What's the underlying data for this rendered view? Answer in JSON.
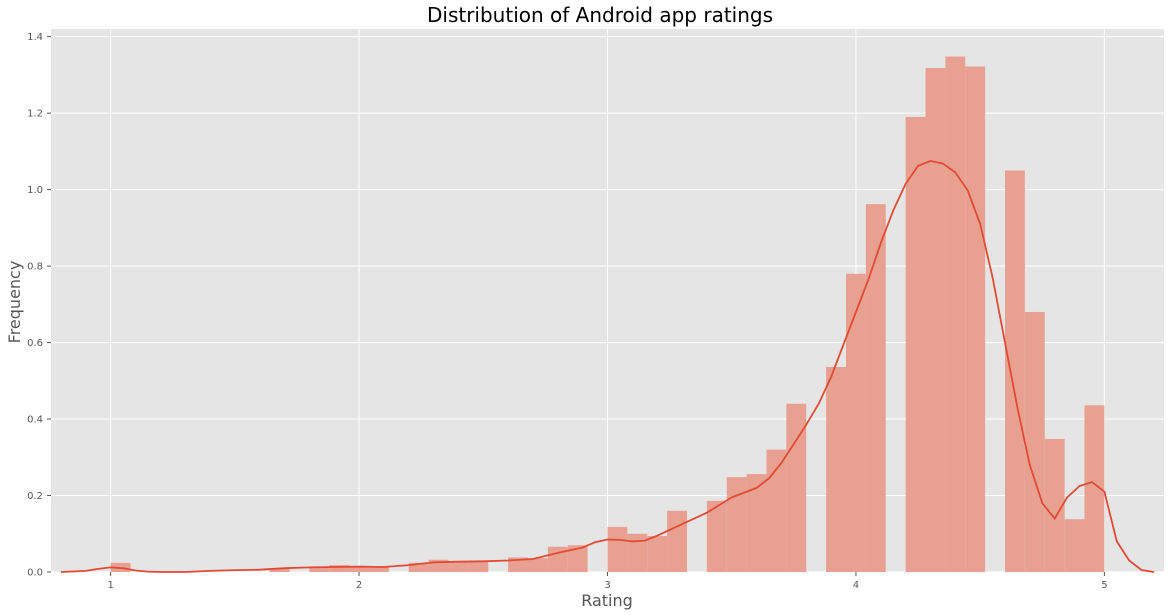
{
  "chart_data": {
    "type": "bar",
    "subtype": "histogram-with-kde",
    "title": "Distribution of Android app ratings",
    "xlabel": "Rating",
    "ylabel": "Frequency",
    "xlim": [
      0.76,
      5.24
    ],
    "ylim": [
      0,
      1.42
    ],
    "x_ticks": [
      1,
      2,
      3,
      4,
      5
    ],
    "y_ticks": [
      0.0,
      0.2,
      0.4,
      0.6,
      0.8,
      1.0,
      1.2,
      1.4
    ],
    "x_tick_labels": [
      "1",
      "2",
      "3",
      "4",
      "5"
    ],
    "y_tick_labels": [
      "0.0",
      "0.2",
      "0.4",
      "0.6",
      "0.8",
      "1.0",
      "1.2",
      "1.4"
    ],
    "grid": true,
    "colors": {
      "background": "#e5e5e5",
      "grid": "#ffffff",
      "bars": "#e8a091",
      "kde_line": "#e24a33"
    },
    "bin_width": 0.08,
    "series": [
      {
        "name": "histogram",
        "bins": [
          {
            "start": 1.0,
            "value": 0.024
          },
          {
            "start": 1.64,
            "value": 0.008
          },
          {
            "start": 1.8,
            "value": 0.012
          },
          {
            "start": 1.88,
            "value": 0.018
          },
          {
            "start": 1.96,
            "value": 0.016
          },
          {
            "start": 2.04,
            "value": 0.012
          },
          {
            "start": 2.2,
            "value": 0.024
          },
          {
            "start": 2.28,
            "value": 0.032
          },
          {
            "start": 2.36,
            "value": 0.028
          },
          {
            "start": 2.44,
            "value": 0.028
          },
          {
            "start": 2.6,
            "value": 0.038
          },
          {
            "start": 2.68,
            "value": 0.036
          },
          {
            "start": 2.76,
            "value": 0.066
          },
          {
            "start": 2.84,
            "value": 0.07
          },
          {
            "start": 3.0,
            "value": 0.118
          },
          {
            "start": 3.08,
            "value": 0.1
          },
          {
            "start": 3.16,
            "value": 0.094
          },
          {
            "start": 3.24,
            "value": 0.16
          },
          {
            "start": 3.4,
            "value": 0.186
          },
          {
            "start": 3.48,
            "value": 0.248
          },
          {
            "start": 3.56,
            "value": 0.256
          },
          {
            "start": 3.64,
            "value": 0.32
          },
          {
            "start": 3.72,
            "value": 0.44
          },
          {
            "start": 3.88,
            "value": 0.536
          },
          {
            "start": 3.96,
            "value": 0.78
          },
          {
            "start": 4.04,
            "value": 0.962
          },
          {
            "start": 4.2,
            "value": 1.19
          },
          {
            "start": 4.28,
            "value": 1.318
          },
          {
            "start": 4.36,
            "value": 1.348
          },
          {
            "start": 4.44,
            "value": 1.322
          },
          {
            "start": 4.6,
            "value": 1.05
          },
          {
            "start": 4.68,
            "value": 0.68
          },
          {
            "start": 4.76,
            "value": 0.348
          },
          {
            "start": 4.84,
            "value": 0.138
          },
          {
            "start": 4.92,
            "value": 0.436
          }
        ]
      },
      {
        "name": "kde",
        "x": [
          0.8,
          0.9,
          0.95,
          1.0,
          1.05,
          1.1,
          1.15,
          1.2,
          1.3,
          1.4,
          1.5,
          1.6,
          1.7,
          1.8,
          1.9,
          2.0,
          2.1,
          2.2,
          2.3,
          2.4,
          2.5,
          2.6,
          2.7,
          2.8,
          2.9,
          2.95,
          3.0,
          3.05,
          3.1,
          3.15,
          3.2,
          3.3,
          3.4,
          3.5,
          3.6,
          3.65,
          3.7,
          3.75,
          3.8,
          3.85,
          3.9,
          3.95,
          4.0,
          4.05,
          4.1,
          4.15,
          4.2,
          4.25,
          4.3,
          4.35,
          4.4,
          4.45,
          4.5,
          4.55,
          4.6,
          4.65,
          4.7,
          4.75,
          4.8,
          4.85,
          4.9,
          4.95,
          5.0,
          5.05,
          5.1,
          5.15,
          5.2
        ],
        "y": [
          0.0,
          0.003,
          0.008,
          0.012,
          0.01,
          0.004,
          0.001,
          0.0,
          0.0,
          0.003,
          0.005,
          0.006,
          0.01,
          0.012,
          0.013,
          0.014,
          0.013,
          0.018,
          0.025,
          0.027,
          0.028,
          0.03,
          0.034,
          0.05,
          0.064,
          0.078,
          0.085,
          0.084,
          0.08,
          0.082,
          0.095,
          0.125,
          0.155,
          0.195,
          0.22,
          0.245,
          0.285,
          0.335,
          0.385,
          0.44,
          0.51,
          0.595,
          0.68,
          0.765,
          0.86,
          0.945,
          1.015,
          1.062,
          1.075,
          1.068,
          1.045,
          0.998,
          0.91,
          0.77,
          0.6,
          0.43,
          0.28,
          0.18,
          0.14,
          0.195,
          0.225,
          0.235,
          0.21,
          0.08,
          0.03,
          0.005,
          0.0
        ]
      }
    ]
  }
}
